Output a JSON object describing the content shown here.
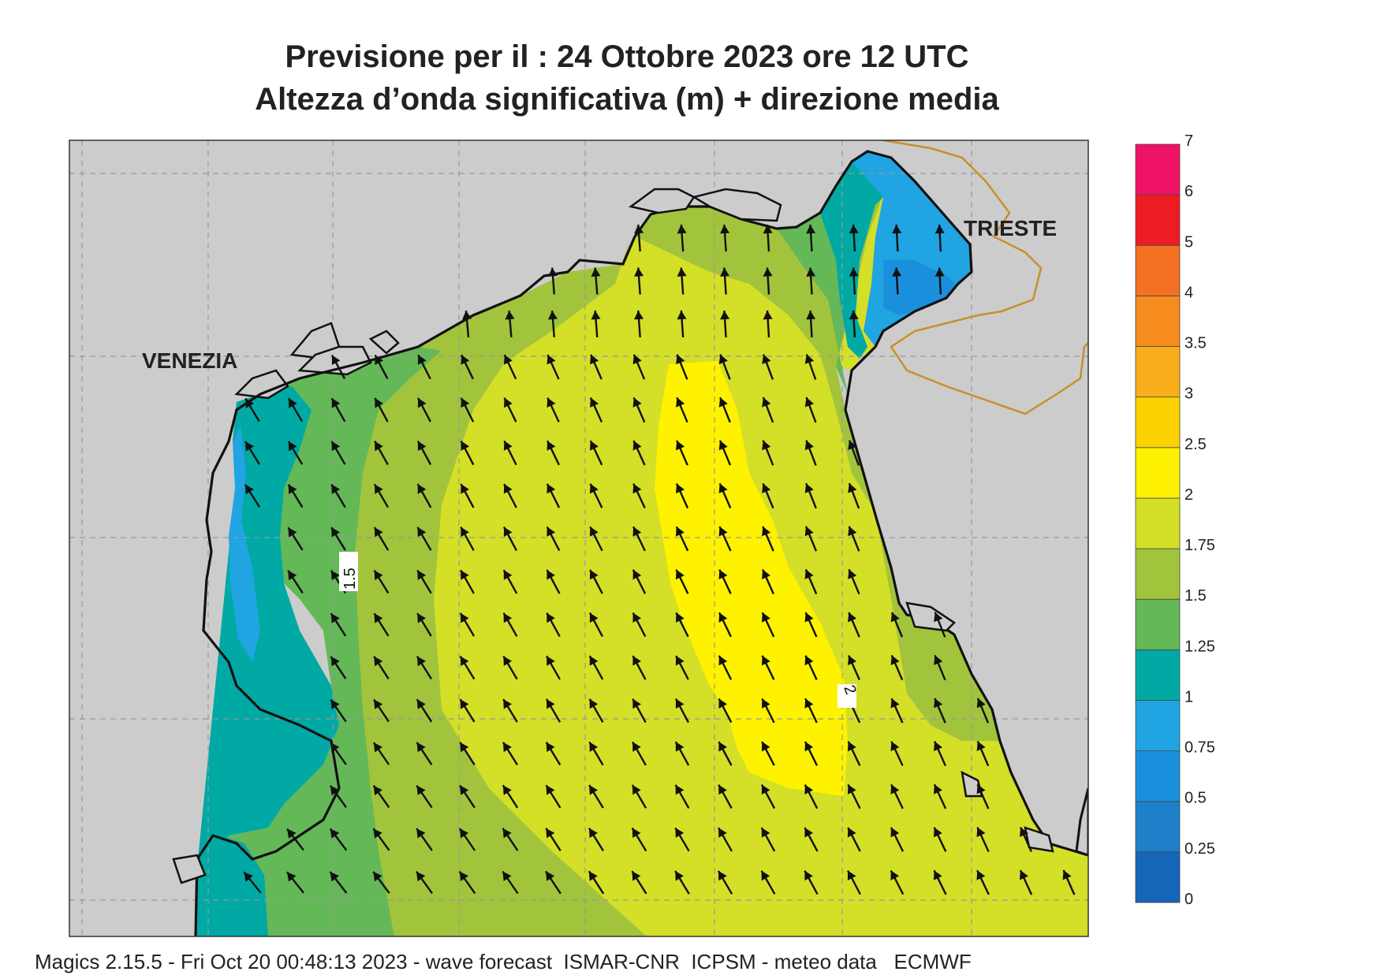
{
  "title_line1": "Previsione per il  :  24  Ottobre  2023   ore 12 UTC",
  "title_line2": "Altezza d’onda significativa (m) + direzione media",
  "cities": {
    "venezia": "VENEZIA",
    "trieste": "TRIESTE"
  },
  "contour_labels": {
    "c15": "1.5",
    "c2": "2"
  },
  "colorbar": {
    "levels": [
      "0",
      "0.25",
      "0.5",
      "0.75",
      "1",
      "1.25",
      "1.5",
      "1.75",
      "2",
      "2.5",
      "3",
      "3.5",
      "4",
      "5",
      "6",
      "7"
    ],
    "colors": [
      "#1565b8",
      "#1e80c8",
      "#1a90dc",
      "#20a4e2",
      "#00a9a4",
      "#64b857",
      "#a2c43c",
      "#d4df28",
      "#fff200",
      "#fcd200",
      "#f9ae1c",
      "#f68c1e",
      "#f47022",
      "#ed1c24",
      "#ee1364"
    ]
  },
  "footer": "Magics 2.15.5 - Fri Oct 20 00:48:13 2023 - wave forecast  ISMAR-CNR  ICPSM - meteo data   ECMWF",
  "colors": {
    "land": "#cccccc",
    "coast": "#111111",
    "border": "#c8902a",
    "grid": "#999999",
    "arrow": "#111111"
  }
}
